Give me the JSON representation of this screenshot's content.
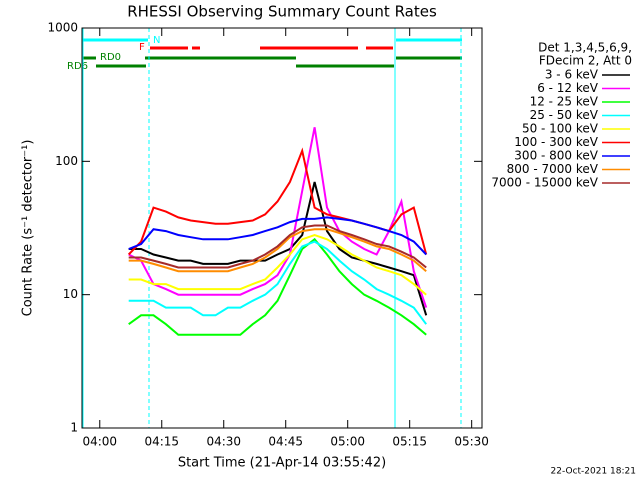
{
  "chart_data": {
    "type": "line",
    "title": "RHESSI Observing Summary Count Rates",
    "xlabel": "Start Time (21-Apr-14 03:55:42)",
    "ylabel": "Count Rate (s⁻¹ detector⁻¹)",
    "legend_title": [
      "Det 1,3,4,5,6,9,",
      "FDecim 2, Att 0"
    ],
    "annotations": [
      "N",
      "F",
      "RD0",
      "RD6"
    ],
    "footer": "22-Oct-2021 18:21",
    "log_y": true,
    "xlim": [
      235.7,
      332.5
    ],
    "xticks": [
      {
        "value": 240,
        "label": "04:00"
      },
      {
        "value": 255,
        "label": "04:15"
      },
      {
        "value": 270,
        "label": "04:30"
      },
      {
        "value": 285,
        "label": "04:45"
      },
      {
        "value": 300,
        "label": "05:00"
      },
      {
        "value": 315,
        "label": "05:15"
      },
      {
        "value": 330,
        "label": "05:30"
      }
    ],
    "ylim": [
      1,
      1000
    ],
    "yticks": [
      1,
      10,
      100,
      1000
    ],
    "x": [
      247,
      250,
      253,
      256,
      259,
      262,
      265,
      268,
      271,
      274,
      277,
      280,
      283,
      286,
      289,
      292,
      295,
      298,
      301,
      304,
      307,
      310,
      313,
      316,
      319
    ],
    "series": [
      {
        "name": "3 - 6 keV",
        "color": "#000000",
        "values": [
          22,
          22,
          20,
          19,
          18,
          18,
          17,
          17,
          17,
          18,
          18,
          18,
          20,
          22,
          28,
          70,
          30,
          22,
          19,
          18,
          17,
          16,
          15,
          14,
          7
        ]
      },
      {
        "name": "6 - 12 keV",
        "color": "#ff00ff",
        "values": [
          20,
          18,
          12,
          11,
          10,
          10,
          10,
          10,
          10,
          10,
          11,
          12,
          14,
          20,
          60,
          180,
          45,
          30,
          25,
          22,
          20,
          30,
          50,
          15,
          8
        ]
      },
      {
        "name": "12 - 25 keV",
        "color": "#00ff00",
        "values": [
          6,
          7,
          7,
          6,
          5,
          5,
          5,
          5,
          5,
          5,
          6,
          7,
          9,
          14,
          22,
          26,
          20,
          15,
          12,
          10,
          9,
          8,
          7,
          6,
          5
        ]
      },
      {
        "name": "25 - 50 keV",
        "color": "#00ffff",
        "values": [
          9,
          9,
          9,
          8,
          8,
          8,
          7,
          7,
          8,
          8,
          9,
          10,
          12,
          17,
          23,
          25,
          22,
          18,
          15,
          13,
          11,
          10,
          9,
          8,
          6
        ]
      },
      {
        "name": "50 - 100 keV",
        "color": "#ffff00",
        "values": [
          13,
          13,
          12,
          12,
          11,
          11,
          11,
          11,
          11,
          11,
          12,
          13,
          16,
          20,
          26,
          28,
          26,
          23,
          20,
          18,
          16,
          15,
          14,
          12,
          10
        ]
      },
      {
        "name": "100 - 300 keV",
        "color": "#ff0000",
        "values": [
          20,
          25,
          45,
          42,
          38,
          36,
          35,
          34,
          34,
          35,
          36,
          40,
          50,
          70,
          120,
          45,
          40,
          38,
          36,
          34,
          32,
          30,
          40,
          45,
          20
        ]
      },
      {
        "name": "300 - 800 keV",
        "color": "#0000ff",
        "values": [
          22,
          24,
          31,
          30,
          28,
          27,
          26,
          26,
          26,
          27,
          28,
          30,
          32,
          35,
          37,
          37,
          38,
          37,
          36,
          34,
          32,
          30,
          28,
          25,
          20
        ]
      },
      {
        "name": "800 - 7000 keV",
        "color": "#ff8c00",
        "values": [
          18,
          18,
          17,
          16,
          15,
          15,
          15,
          15,
          15,
          16,
          17,
          19,
          22,
          27,
          30,
          31,
          31,
          29,
          27,
          25,
          23,
          22,
          20,
          18,
          15
        ]
      },
      {
        "name": "7000 - 15000 keV",
        "color": "#a52a2a",
        "values": [
          19,
          19,
          18,
          17,
          16,
          16,
          16,
          16,
          16,
          17,
          18,
          20,
          23,
          28,
          32,
          33,
          33,
          30,
          28,
          26,
          24,
          23,
          21,
          19,
          16
        ]
      }
    ]
  }
}
